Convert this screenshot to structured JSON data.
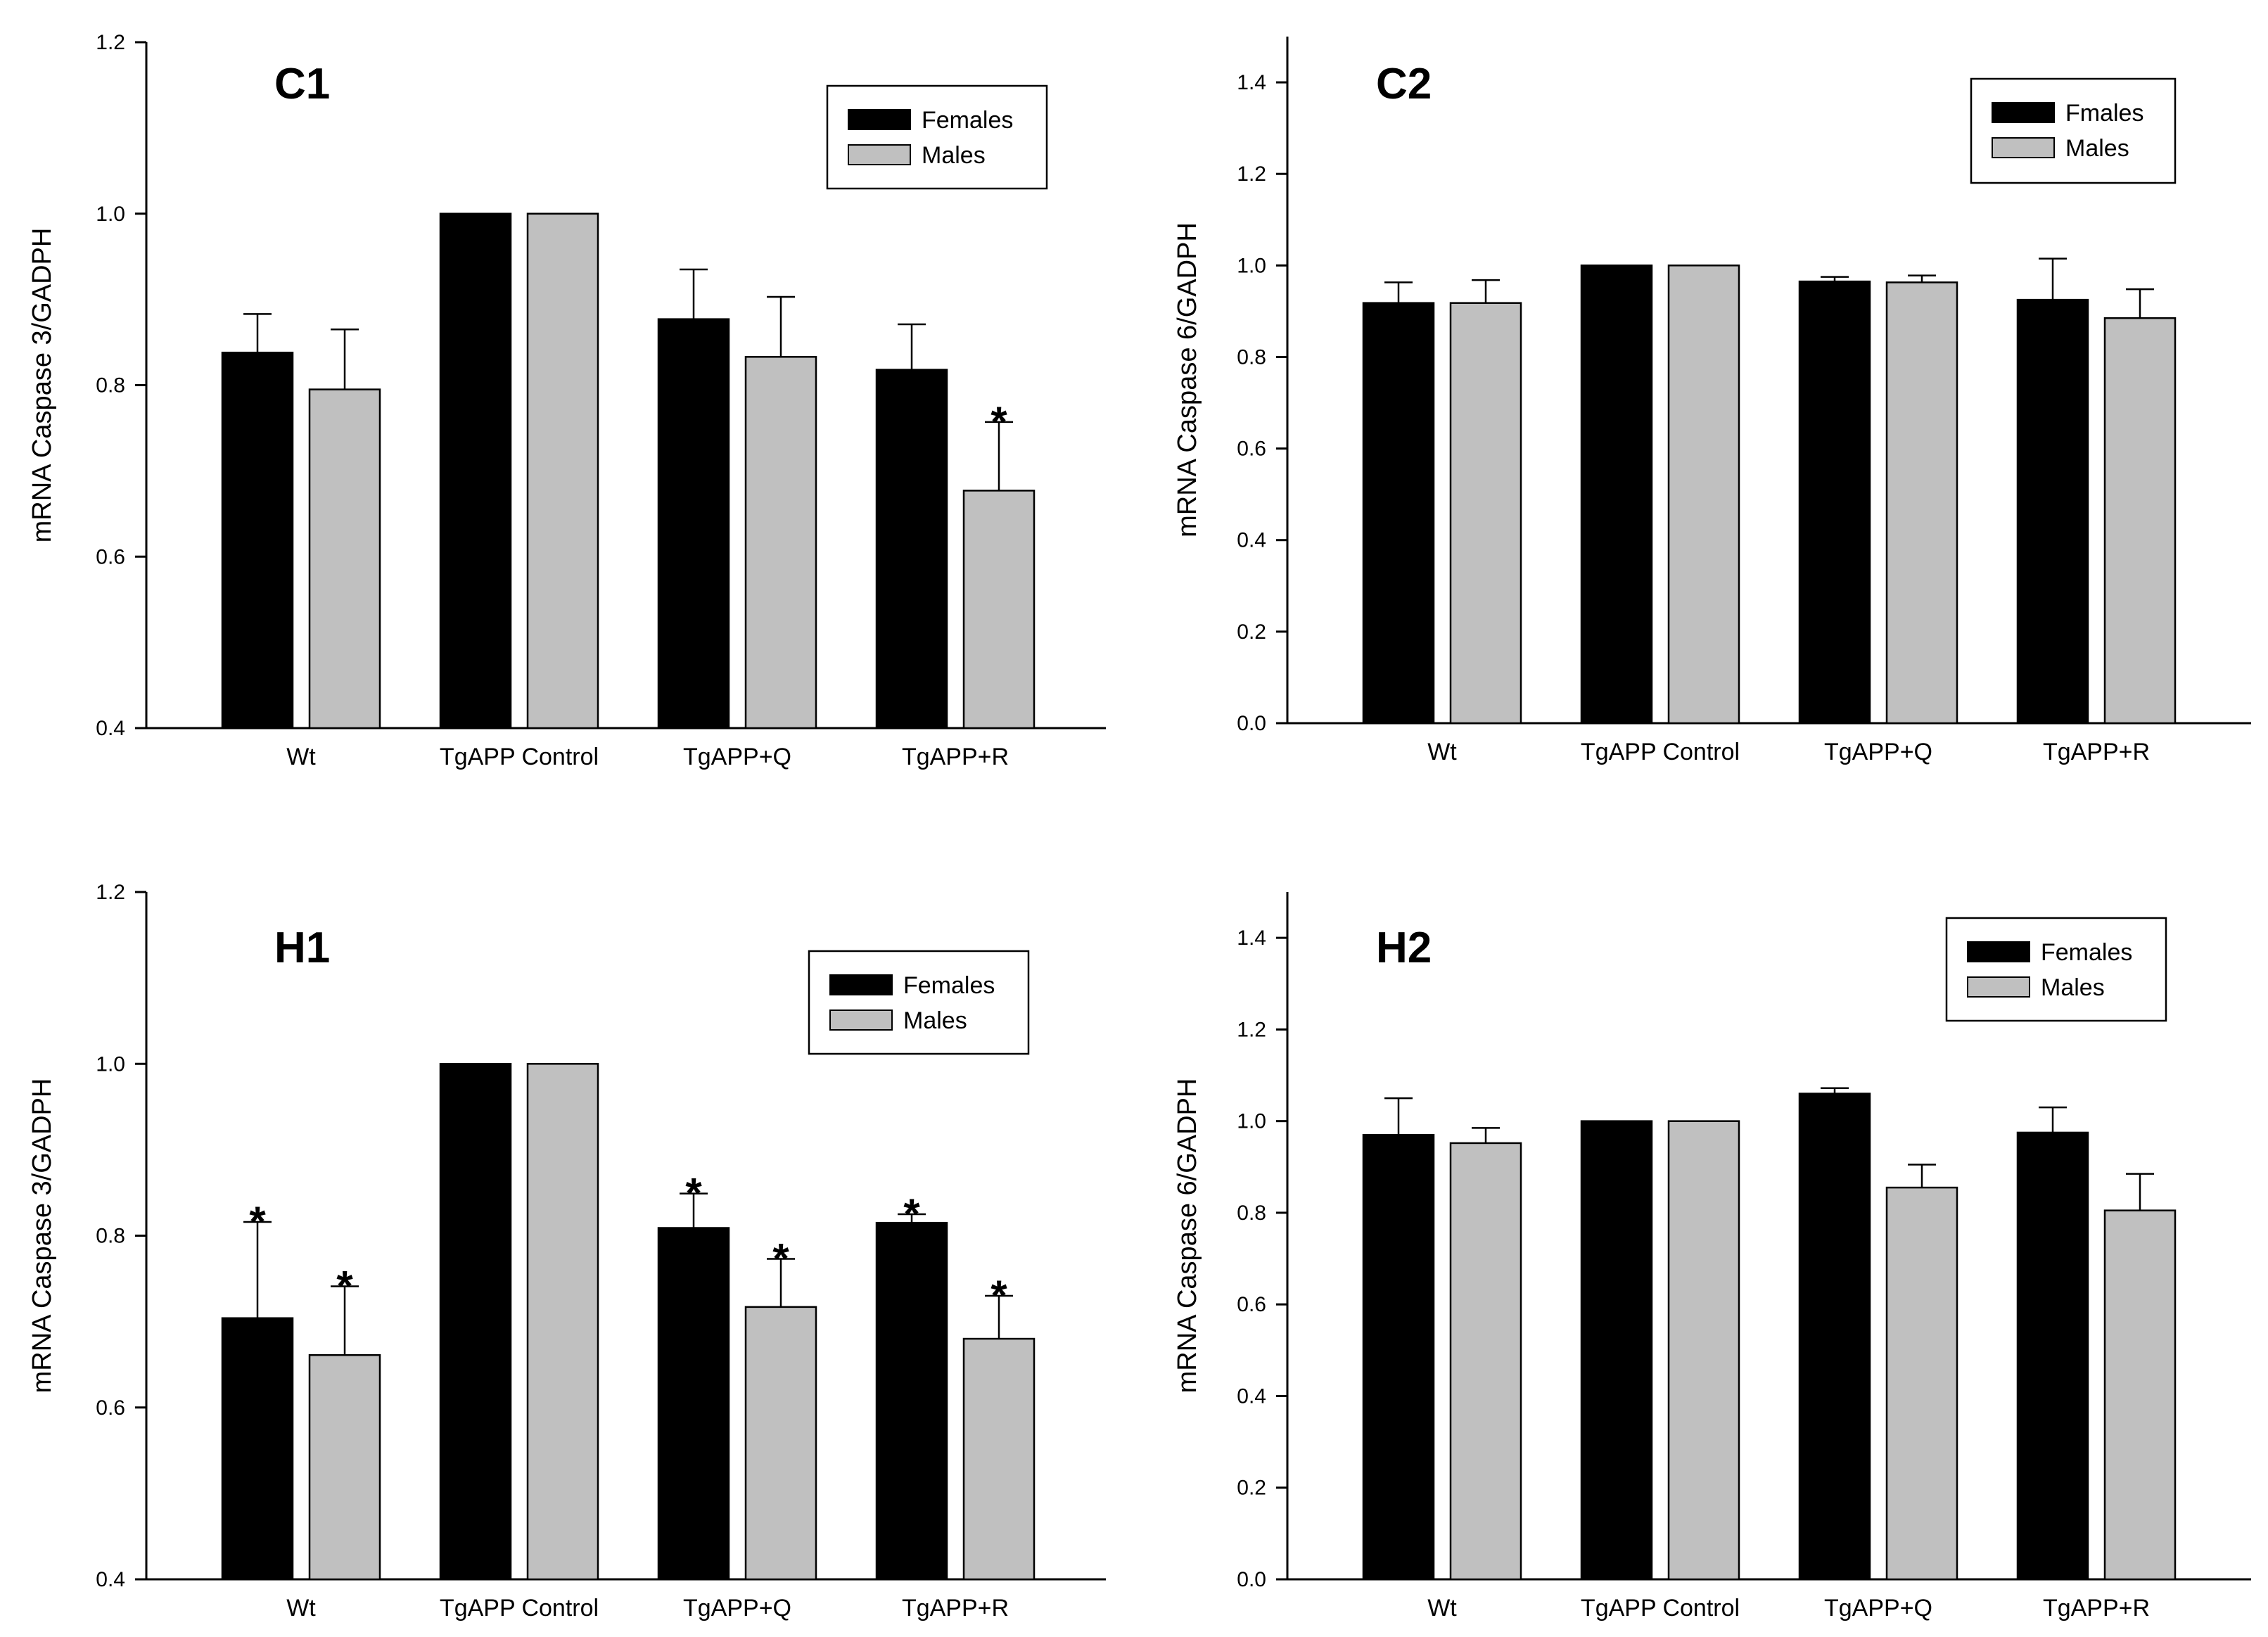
{
  "figure": {
    "colors": {
      "females": "#000000",
      "males": "#c0c0c0",
      "axis": "#000000",
      "frame": "#000000"
    }
  },
  "chart_data": [
    {
      "id": "C1",
      "type": "bar",
      "title": "C1",
      "ylabel": "mRNA Caspase 3/GADPH",
      "xlabel": "",
      "ylim": [
        0.4,
        1.2
      ],
      "yticks": [
        "0.4",
        "0.6",
        "0.8",
        "1.0",
        "1.2"
      ],
      "categories": [
        "Wt",
        "TgAPP Control",
        "TgAPP+Q",
        "TgAPP+R"
      ],
      "legend": {
        "position": "top-right",
        "entries": [
          "Females",
          "Males"
        ]
      },
      "series": [
        {
          "name": "Females",
          "color": "#000000",
          "values": [
            0.838,
            1.0,
            0.877,
            0.818
          ],
          "errors": [
            0.045,
            0.0,
            0.058,
            0.053
          ],
          "significant": [
            false,
            false,
            false,
            false
          ]
        },
        {
          "name": "Males",
          "color": "#c0c0c0",
          "values": [
            0.795,
            1.0,
            0.833,
            0.677
          ],
          "errors": [
            0.07,
            0.0,
            0.07,
            0.08
          ],
          "significant": [
            false,
            false,
            false,
            true
          ]
        }
      ],
      "significance_marker": "*"
    },
    {
      "id": "C2",
      "type": "bar",
      "title": "C2",
      "ylabel": "mRNA Caspase 6/GADPH",
      "xlabel": "",
      "ylim": [
        0.0,
        1.5
      ],
      "yticks": [
        "0.0",
        "0.2",
        "0.4",
        "0.6",
        "0.8",
        "1.0",
        "1.2",
        "1.4"
      ],
      "categories": [
        "Wt",
        "TgAPP Control",
        "TgAPP+Q",
        "TgAPP+R"
      ],
      "legend": {
        "position": "top-right",
        "entries": [
          "Fmales",
          "Males"
        ]
      },
      "series": [
        {
          "name": "Fmales",
          "color": "#000000",
          "values": [
            0.918,
            1.0,
            0.965,
            0.925
          ],
          "errors": [
            0.045,
            0.0,
            0.01,
            0.09
          ],
          "significant": [
            false,
            false,
            false,
            false
          ]
        },
        {
          "name": "Males",
          "color": "#c0c0c0",
          "values": [
            0.918,
            1.0,
            0.963,
            0.885
          ],
          "errors": [
            0.05,
            0.0,
            0.015,
            0.063
          ],
          "significant": [
            false,
            false,
            false,
            false
          ]
        }
      ],
      "significance_marker": "*"
    },
    {
      "id": "H1",
      "type": "bar",
      "title": "H1",
      "ylabel": "mRNA Caspase 3/GADPH",
      "xlabel": "",
      "ylim": [
        0.4,
        1.2
      ],
      "yticks": [
        "0.4",
        "0.6",
        "0.8",
        "1.0",
        "1.2"
      ],
      "categories": [
        "Wt",
        "TgAPP Control",
        "TgAPP+Q",
        "TgAPP+R"
      ],
      "legend": {
        "position": "top-right",
        "entries": [
          "Females",
          "Males"
        ]
      },
      "series": [
        {
          "name": "Females",
          "color": "#000000",
          "values": [
            0.704,
            1.0,
            0.809,
            0.815
          ],
          "errors": [
            0.112,
            0.0,
            0.04,
            0.01
          ],
          "significant": [
            true,
            false,
            true,
            true
          ]
        },
        {
          "name": "Males",
          "color": "#c0c0c0",
          "values": [
            0.661,
            1.0,
            0.717,
            0.68
          ],
          "errors": [
            0.08,
            0.0,
            0.056,
            0.05
          ],
          "significant": [
            true,
            false,
            true,
            true
          ]
        }
      ],
      "significance_marker": "*"
    },
    {
      "id": "H2",
      "type": "bar",
      "title": "H2",
      "ylabel": "mRNA Caspase 6/GADPH",
      "xlabel": "",
      "ylim": [
        0.0,
        1.5
      ],
      "yticks": [
        "0.0",
        "0.2",
        "0.4",
        "0.6",
        "0.8",
        "1.0",
        "1.2",
        "1.4"
      ],
      "categories": [
        "Wt",
        "TgAPP Control",
        "TgAPP+Q",
        "TgAPP+R"
      ],
      "legend": {
        "position": "top-right",
        "entries": [
          "Females",
          "Males"
        ]
      },
      "series": [
        {
          "name": "Females",
          "color": "#000000",
          "values": [
            0.97,
            1.0,
            1.06,
            0.975
          ],
          "errors": [
            0.08,
            0.0,
            0.012,
            0.055
          ],
          "significant": [
            false,
            false,
            false,
            false
          ]
        },
        {
          "name": "Males",
          "color": "#c0c0c0",
          "values": [
            0.952,
            1.0,
            0.855,
            0.805
          ],
          "errors": [
            0.033,
            0.0,
            0.05,
            0.08
          ],
          "significant": [
            false,
            false,
            false,
            false
          ]
        }
      ],
      "significance_marker": "*"
    }
  ]
}
